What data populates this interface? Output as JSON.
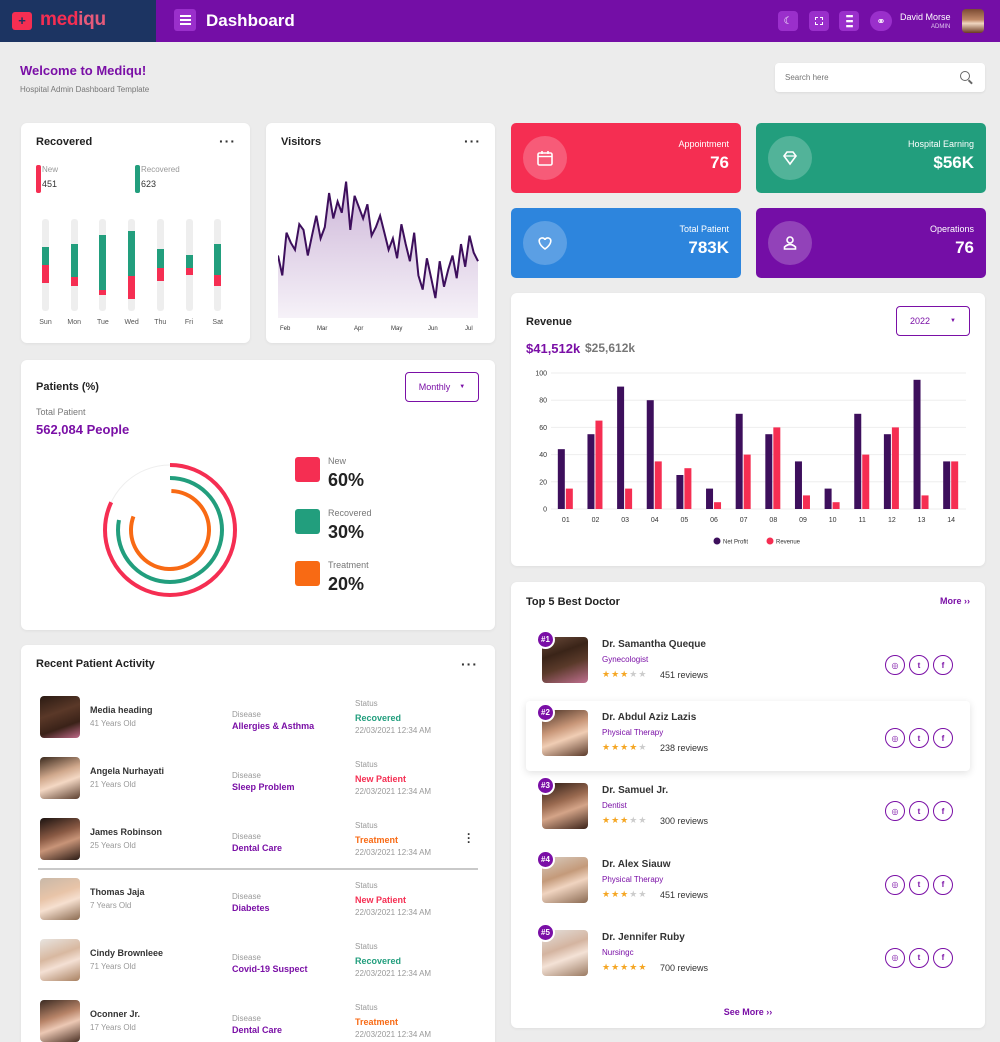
{
  "colors": {
    "purple": "#740ea6",
    "navy": "#1c3462",
    "red": "#f52e52",
    "green": "#229e7d",
    "orange": "#f86a14",
    "blue": "#2d85dd",
    "darkPurple": "#3d0f5c"
  },
  "app": {
    "brand_pre": "med",
    "brand_post": "iqu",
    "page_title": "Dashboard"
  },
  "user": {
    "name": "David Morse",
    "role": "ADMIN"
  },
  "welcome": {
    "title": "Welcome to Mediqu!",
    "subtitle": "Hospital Admin Dashboard Template"
  },
  "search": {
    "placeholder": "Search here"
  },
  "recovered": {
    "title": "Recovered",
    "legend": [
      {
        "label": "New",
        "value": "451"
      },
      {
        "label": "Recovered",
        "value": "623"
      }
    ],
    "days": [
      "Sun",
      "Mon",
      "Tue",
      "Wed",
      "Thu",
      "Fri",
      "Sat"
    ],
    "green": [
      0.2,
      0.36,
      0.6,
      0.48,
      0.2,
      0.14,
      0.34
    ],
    "red": [
      0.2,
      0.1,
      0.05,
      0.25,
      0.14,
      0.07,
      0.12
    ]
  },
  "visitors": {
    "title": "Visitors",
    "months": [
      "Feb",
      "Mar",
      "Apr",
      "May",
      "Jun",
      "Jul"
    ]
  },
  "patients": {
    "title": "Patients (%)",
    "dropdown": "Monthly",
    "total_label": "Total Patient",
    "total_value": "562,084 People",
    "legend": [
      {
        "label": "New",
        "value": "60%",
        "color": "#f52e52"
      },
      {
        "label": "Recovered",
        "value": "30%",
        "color": "#229e7d"
      },
      {
        "label": "Treatment",
        "value": "20%",
        "color": "#f86a14"
      }
    ]
  },
  "stats": [
    {
      "label": "Appointment",
      "value": "76",
      "color": "#f52e52",
      "icon": "calendar-icon"
    },
    {
      "label": "Hospital Earning",
      "value": "$56K",
      "color": "#229e7d",
      "icon": "diamond-icon"
    },
    {
      "label": "Total Patient",
      "value": "783K",
      "color": "#2d85dd",
      "icon": "heart-icon"
    },
    {
      "label": "Operations",
      "value": "76",
      "color": "#740ea6",
      "icon": "user-icon"
    }
  ],
  "revenue": {
    "title": "Revenue",
    "year": "2022",
    "primary": "$41,512k",
    "secondary": "$25,612k"
  },
  "chart_data": {
    "type": "bar",
    "categories": [
      "01",
      "02",
      "03",
      "04",
      "05",
      "06",
      "07",
      "08",
      "09",
      "10",
      "11",
      "12",
      "13",
      "14"
    ],
    "series": [
      {
        "name": "Net Profit",
        "color": "#3d0f5c",
        "values": [
          44,
          55,
          90,
          80,
          25,
          15,
          70,
          55,
          35,
          15,
          70,
          55,
          95,
          35
        ]
      },
      {
        "name": "Revenue",
        "color": "#f52e52",
        "values": [
          15,
          65,
          15,
          35,
          30,
          5,
          40,
          60,
          10,
          5,
          40,
          60,
          10,
          35
        ]
      }
    ],
    "ylim": [
      0,
      100
    ],
    "yticks": [
      0,
      20,
      40,
      60,
      80,
      100
    ]
  },
  "activity": {
    "title": "Recent Patient Activity",
    "disease_label": "Disease",
    "status_label": "Status",
    "rows": [
      {
        "name": "Media heading",
        "age": "41 Years Old",
        "disease": "Allergies & Asthma",
        "status": "Recovered",
        "status_color": "#229e7d",
        "date": "22/03/2021 12:34 AM"
      },
      {
        "name": "Angela Nurhayati",
        "age": "21 Years Old",
        "disease": "Sleep Problem",
        "status": "New Patient",
        "status_color": "#f52e52",
        "date": "22/03/2021 12:34 AM"
      },
      {
        "name": "James Robinson",
        "age": "25 Years Old",
        "disease": "Dental Care",
        "status": "Treatment",
        "status_color": "#f86a14",
        "date": "22/03/2021 12:34 AM"
      },
      {
        "name": "Thomas Jaja",
        "age": "7 Years Old",
        "disease": "Diabetes",
        "status": "New Patient",
        "status_color": "#f52e52",
        "date": "22/03/2021 12:34 AM"
      },
      {
        "name": "Cindy Brownleee",
        "age": "71 Years Old",
        "disease": "Covid-19 Suspect",
        "status": "Recovered",
        "status_color": "#229e7d",
        "date": "22/03/2021 12:34 AM"
      },
      {
        "name": "Oconner Jr.",
        "age": "17 Years Old",
        "disease": "Dental Care",
        "status": "Treatment",
        "status_color": "#f86a14",
        "date": "22/03/2021 12:34 AM"
      }
    ]
  },
  "doctors": {
    "title": "Top 5 Best Doctor",
    "more": "More ››",
    "see_more": "See More ››",
    "list": [
      {
        "rank": "#1",
        "name": "Dr. Samantha Queque",
        "spec": "Gynecologist",
        "stars": 3,
        "reviews": "451 reviews"
      },
      {
        "rank": "#2",
        "name": "Dr. Abdul Aziz Lazis",
        "spec": "Physical Therapy",
        "stars": 4,
        "reviews": "238 reviews"
      },
      {
        "rank": "#3",
        "name": "Dr. Samuel Jr.",
        "spec": "Dentist",
        "stars": 3,
        "reviews": "300 reviews"
      },
      {
        "rank": "#4",
        "name": "Dr. Alex Siauw",
        "spec": "Physical Therapy",
        "stars": 3,
        "reviews": "451 reviews"
      },
      {
        "rank": "#5",
        "name": "Dr. Jennifer Ruby",
        "spec": "Nursingc",
        "stars": 5,
        "reviews": "700 reviews"
      }
    ]
  }
}
